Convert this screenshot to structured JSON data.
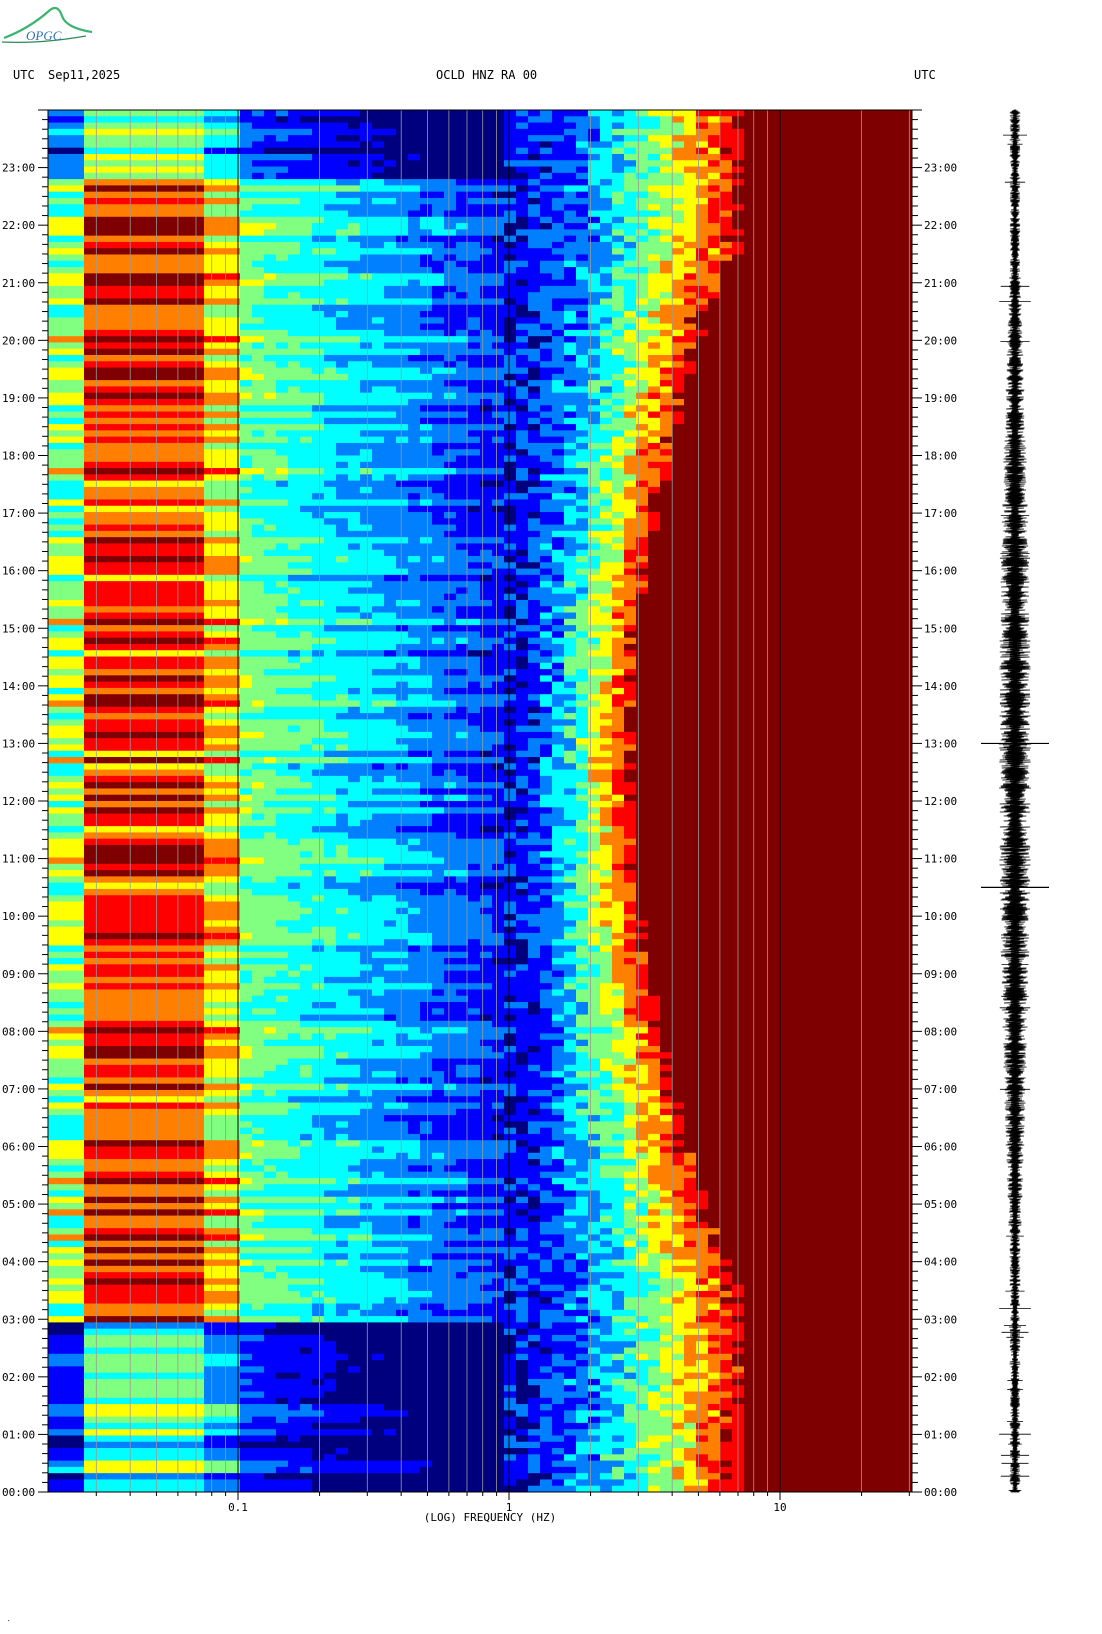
{
  "logo": {
    "text": "OPGC",
    "color": "#3cb371"
  },
  "header": {
    "left_tz": "UTC",
    "date": "Sep11,2025",
    "station": "OCLD HNZ RA 00",
    "right_tz": "UTC"
  },
  "footer": {
    "mark": "˙"
  },
  "chart_data": {
    "type": "heatmap",
    "title": "OCLD HNZ RA 00",
    "xlabel": "(LOG) FREQUENCY (HZ)",
    "x_scale": "log",
    "xlim": [
      0.02,
      30
    ],
    "x_ticks": [
      0.1,
      1,
      10
    ],
    "x_tick_labels": [
      "0.1",
      "1",
      "10"
    ],
    "y_unit": "UTC hours",
    "ylim": [
      0,
      24
    ],
    "y_tick_labels": [
      "00:00",
      "01:00",
      "02:00",
      "03:00",
      "04:00",
      "05:00",
      "06:00",
      "07:00",
      "08:00",
      "09:00",
      "10:00",
      "11:00",
      "12:00",
      "13:00",
      "14:00",
      "15:00",
      "16:00",
      "17:00",
      "18:00",
      "19:00",
      "20:00",
      "21:00",
      "22:00",
      "23:00"
    ],
    "colormap": [
      "#00007f",
      "#0000ff",
      "#0080ff",
      "#00ffff",
      "#80ff80",
      "#ffff00",
      "#ff8000",
      "#ff0000",
      "#7f0000"
    ],
    "gridlines_hz": [
      0.03,
      0.04,
      0.05,
      0.06,
      0.07,
      0.08,
      0.09,
      0.1,
      0.2,
      0.3,
      0.4,
      0.5,
      0.6,
      0.7,
      0.8,
      0.9,
      1,
      2,
      3,
      4,
      5,
      6,
      7,
      8,
      9,
      10,
      20,
      30
    ],
    "seismogram": {
      "color": "#000000",
      "large_events_utc": [
        13.0,
        10.5
      ]
    }
  }
}
